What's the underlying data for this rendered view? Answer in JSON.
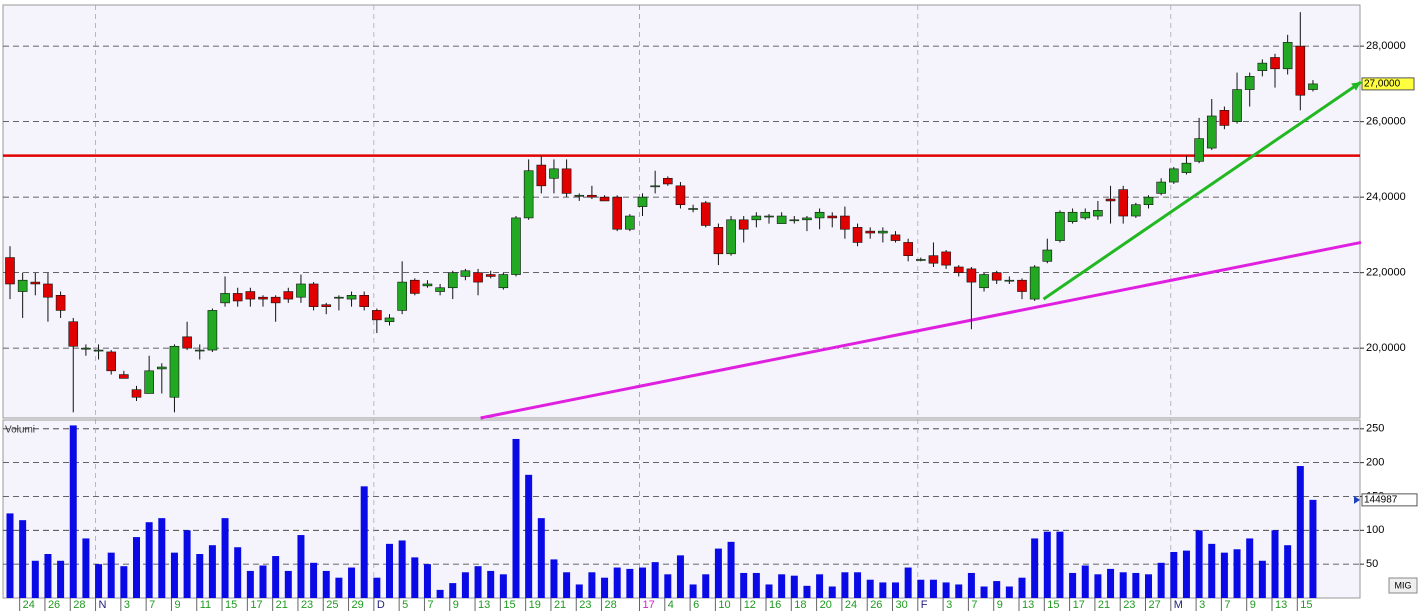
{
  "chart_data": {
    "type": "candlestick",
    "categories": [
      null,
      "24",
      null,
      "26",
      null,
      "28",
      null,
      "N",
      null,
      "3",
      null,
      "7",
      null,
      "9",
      null,
      "11",
      null,
      "15",
      null,
      "17",
      null,
      "21",
      null,
      "23",
      null,
      "25",
      null,
      "29",
      null,
      "D",
      null,
      "5",
      null,
      "7",
      null,
      "9",
      null,
      "13",
      null,
      "15",
      null,
      "19",
      null,
      "21",
      null,
      "23",
      null,
      "28",
      null,
      null,
      "17",
      null,
      "4",
      null,
      "6",
      null,
      "10",
      null,
      "12",
      null,
      "16",
      null,
      "18",
      null,
      "20",
      null,
      "24",
      null,
      "26",
      null,
      "30",
      null,
      "F",
      null,
      "3",
      null,
      "7",
      null,
      "9",
      null,
      "13",
      null,
      "15",
      null,
      "17",
      null,
      "21",
      null,
      "23",
      null,
      "27",
      null,
      "M",
      null,
      "3",
      null,
      "7",
      null,
      "9",
      null,
      "13",
      null,
      "15",
      null
    ],
    "open": [
      22.4,
      21.5,
      21.75,
      21.7,
      21.4,
      20.7,
      20.0,
      19.95,
      19.9,
      19.3,
      18.9,
      18.8,
      19.45,
      18.7,
      20.3,
      19.95,
      19.95,
      21.2,
      21.45,
      21.5,
      21.35,
      21.35,
      21.5,
      21.35,
      21.7,
      21.15,
      21.35,
      21.3,
      21.4,
      21.0,
      20.7,
      21.0,
      21.8,
      21.65,
      21.5,
      21.6,
      21.9,
      22.0,
      21.95,
      21.6,
      21.95,
      23.45,
      24.85,
      24.5,
      24.75,
      24.05,
      24.05,
      24.0,
      24.0,
      23.15,
      23.75,
      24.3,
      24.5,
      24.3,
      23.7,
      23.85,
      23.2,
      22.5,
      23.4,
      23.4,
      23.5,
      23.3,
      23.4,
      23.4,
      23.45,
      23.5,
      23.5,
      23.2,
      23.1,
      23.05,
      23.0,
      22.8,
      22.35,
      22.45,
      22.55,
      22.15,
      22.1,
      21.6,
      22.0,
      21.8,
      21.8,
      21.3,
      22.3,
      22.85,
      23.35,
      23.45,
      23.5,
      23.95,
      24.2,
      23.5,
      23.8,
      24.1,
      24.4,
      24.65,
      24.95,
      25.3,
      26.3,
      26.0,
      26.85,
      27.35,
      27.7,
      27.4,
      28.0,
      26.85
    ],
    "high": [
      22.7,
      22.0,
      22.0,
      22.0,
      21.5,
      20.8,
      20.1,
      20.1,
      19.95,
      19.4,
      19.0,
      19.8,
      19.6,
      20.1,
      20.7,
      20.1,
      21.05,
      21.9,
      21.6,
      21.6,
      21.4,
      21.4,
      21.6,
      21.95,
      21.75,
      21.2,
      21.4,
      21.5,
      21.5,
      21.05,
      20.9,
      22.3,
      21.85,
      21.8,
      21.7,
      22.05,
      22.1,
      22.1,
      22.05,
      22.0,
      23.5,
      25.0,
      25.1,
      25.0,
      25.0,
      24.1,
      24.3,
      24.05,
      24.05,
      23.55,
      24.1,
      24.7,
      24.55,
      24.4,
      23.8,
      23.9,
      23.3,
      23.5,
      23.5,
      23.6,
      23.55,
      23.6,
      23.5,
      23.5,
      23.7,
      23.6,
      23.75,
      23.3,
      23.2,
      23.2,
      23.1,
      22.9,
      22.4,
      22.8,
      22.6,
      22.2,
      22.15,
      22.0,
      22.05,
      21.9,
      21.85,
      22.2,
      22.9,
      23.65,
      23.7,
      23.7,
      23.9,
      24.3,
      24.3,
      23.85,
      24.05,
      24.5,
      24.8,
      25.1,
      26.1,
      26.6,
      26.4,
      27.3,
      27.3,
      27.65,
      27.8,
      28.3,
      28.9,
      27.1
    ],
    "low": [
      21.3,
      20.8,
      21.4,
      20.7,
      20.8,
      18.3,
      19.8,
      19.7,
      19.3,
      19.2,
      18.6,
      18.8,
      18.8,
      18.3,
      19.95,
      19.7,
      19.9,
      21.1,
      21.1,
      21.1,
      21.1,
      20.7,
      21.2,
      21.2,
      21.0,
      20.9,
      21.0,
      21.1,
      21.0,
      20.4,
      20.6,
      20.9,
      21.4,
      21.6,
      21.4,
      21.3,
      21.8,
      21.4,
      21.85,
      21.55,
      21.9,
      23.4,
      24.1,
      24.1,
      24.0,
      23.9,
      23.95,
      23.9,
      23.1,
      23.1,
      23.5,
      24.1,
      24.3,
      23.7,
      23.6,
      23.2,
      22.2,
      22.45,
      22.8,
      23.2,
      23.3,
      23.3,
      23.3,
      23.1,
      23.15,
      23.2,
      22.9,
      22.7,
      22.9,
      22.8,
      22.8,
      22.3,
      22.3,
      22.15,
      22.1,
      21.9,
      20.5,
      21.5,
      21.7,
      21.7,
      21.3,
      21.25,
      22.25,
      22.8,
      23.3,
      23.4,
      23.4,
      23.3,
      23.3,
      23.45,
      23.7,
      24.05,
      24.35,
      24.6,
      24.9,
      25.25,
      25.8,
      25.95,
      26.4,
      27.2,
      26.9,
      27.25,
      26.3,
      26.8
    ],
    "close": [
      21.7,
      21.8,
      21.7,
      21.35,
      21.0,
      20.05,
      20.0,
      19.95,
      19.4,
      19.2,
      18.7,
      19.4,
      19.5,
      20.05,
      20.0,
      19.95,
      21.0,
      21.45,
      21.25,
      21.3,
      21.3,
      21.2,
      21.3,
      21.7,
      21.1,
      21.1,
      21.35,
      21.4,
      21.1,
      20.75,
      20.8,
      21.75,
      21.45,
      21.7,
      21.6,
      22.0,
      22.05,
      21.75,
      21.9,
      21.95,
      23.45,
      24.7,
      24.3,
      24.75,
      24.1,
      24.05,
      24.0,
      23.9,
      23.15,
      23.5,
      24.0,
      24.3,
      24.35,
      23.8,
      23.7,
      23.25,
      22.5,
      23.4,
      23.15,
      23.5,
      23.5,
      23.5,
      23.4,
      23.45,
      23.6,
      23.45,
      23.15,
      22.8,
      23.05,
      23.1,
      22.85,
      22.45,
      22.35,
      22.25,
      22.2,
      22.0,
      21.75,
      21.95,
      21.8,
      21.8,
      21.5,
      22.15,
      22.6,
      23.6,
      23.6,
      23.6,
      23.65,
      23.9,
      23.5,
      23.8,
      24.0,
      24.4,
      24.75,
      24.9,
      25.55,
      26.15,
      25.9,
      26.85,
      27.2,
      27.55,
      27.4,
      28.1,
      26.7,
      27.0
    ],
    "up_color": "#22a822",
    "down_color": "#e00000",
    "ylim": [
      18.15,
      29.09
    ],
    "yticks": [
      {
        "value": 20,
        "label": "20,0000"
      },
      {
        "value": 22,
        "label": "22,0000"
      },
      {
        "value": 24,
        "label": "24,0000"
      },
      {
        "value": 26,
        "label": "26,0000"
      },
      {
        "value": 28,
        "label": "28,0000"
      }
    ],
    "grid": true,
    "hline": {
      "value": 25.1,
      "color": "#e00000"
    },
    "trendlines": [
      {
        "color": "#22b822",
        "x": [
          81.7,
          106.8
        ],
        "y": [
          21.3,
          27.05
        ]
      },
      {
        "color": "#e020e0",
        "x": [
          37.2,
          106.8
        ],
        "y": [
          18.15,
          22.8
        ]
      }
    ],
    "last_price": {
      "value": 27.0,
      "label": "27,0000"
    },
    "year_categories": [
      50
    ],
    "volume": {
      "name": "Volumi",
      "color": "#0a0ae6",
      "values": [
        125,
        115,
        55,
        65,
        55,
        255,
        88,
        50,
        67,
        47,
        90,
        112,
        118,
        67,
        100,
        65,
        78,
        118,
        75,
        40,
        48,
        62,
        40,
        93,
        52,
        40,
        30,
        45,
        165,
        30,
        80,
        85,
        60,
        50,
        12,
        22,
        38,
        47,
        40,
        35,
        235,
        182,
        118,
        57,
        38,
        20,
        38,
        30,
        45,
        43,
        45,
        53,
        35,
        63,
        20,
        35,
        73,
        83,
        37,
        37,
        20,
        35,
        33,
        18,
        35,
        17,
        38,
        38,
        27,
        23,
        23,
        45,
        27,
        27,
        23,
        20,
        37,
        17,
        25,
        17,
        30,
        88,
        98,
        98,
        37,
        48,
        35,
        43,
        38,
        37,
        35,
        52,
        68,
        70,
        100,
        80,
        67,
        72,
        88,
        55,
        100,
        78,
        195,
        144.987
      ],
      "ylim": [
        0,
        263
      ],
      "yticks": [
        50,
        100,
        150,
        200,
        250
      ],
      "last": {
        "value": 144.987,
        "label": "144987"
      }
    },
    "watermark": "MIG"
  }
}
